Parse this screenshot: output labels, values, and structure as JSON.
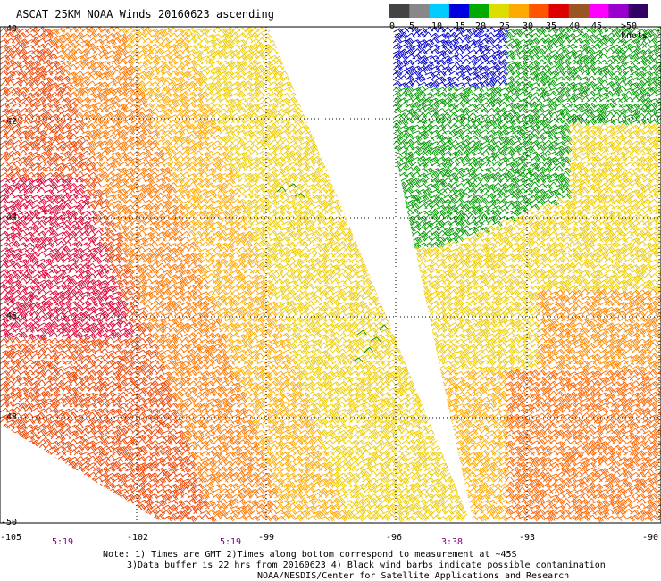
{
  "title": "ASCAT 25KM NOAA Winds 20160623 ascending",
  "colorbar": {
    "labels": [
      "0",
      "5",
      "10",
      "15",
      "20",
      "25",
      "30",
      "35",
      "40",
      "45",
      ">50 knots"
    ],
    "colors": [
      "#444444",
      "#888888",
      "#00ccff",
      "#0000dd",
      "#00aa00",
      "#dddd00",
      "#ffaa00",
      "#ff5500",
      "#dd0000",
      "#995522",
      "#ff00ff",
      "#9900cc",
      "#330066"
    ]
  },
  "axes": {
    "lat_labels": [
      "-40",
      "-42",
      "-44",
      "-46",
      "-48",
      "-50"
    ],
    "lon_labels": [
      "-105",
      "-102",
      "-99",
      "-96",
      "-93",
      "-90"
    ],
    "lat_range": [
      -50,
      -40
    ],
    "lon_range": [
      -105,
      -90
    ],
    "grid": "dotted"
  },
  "times": [
    "5:19",
    "5:19",
    "3:38"
  ],
  "notes": {
    "line1": "Note: 1) Times are GMT 2)Times along bottom correspond to measurement at ~45S",
    "line2": "3)Data buffer is 22 hrs from 20160623 4) Black wind barbs indicate possible contamination",
    "credit": "NOAA/NESDIS/Center for Satellite Applications and Research"
  },
  "swaths": [
    {
      "name": "west-swath",
      "speed_gradient": "red-to-yellow west to east"
    },
    {
      "name": "east-swath",
      "speed_gradient": "blue-green north to yellow-orange south"
    }
  ]
}
